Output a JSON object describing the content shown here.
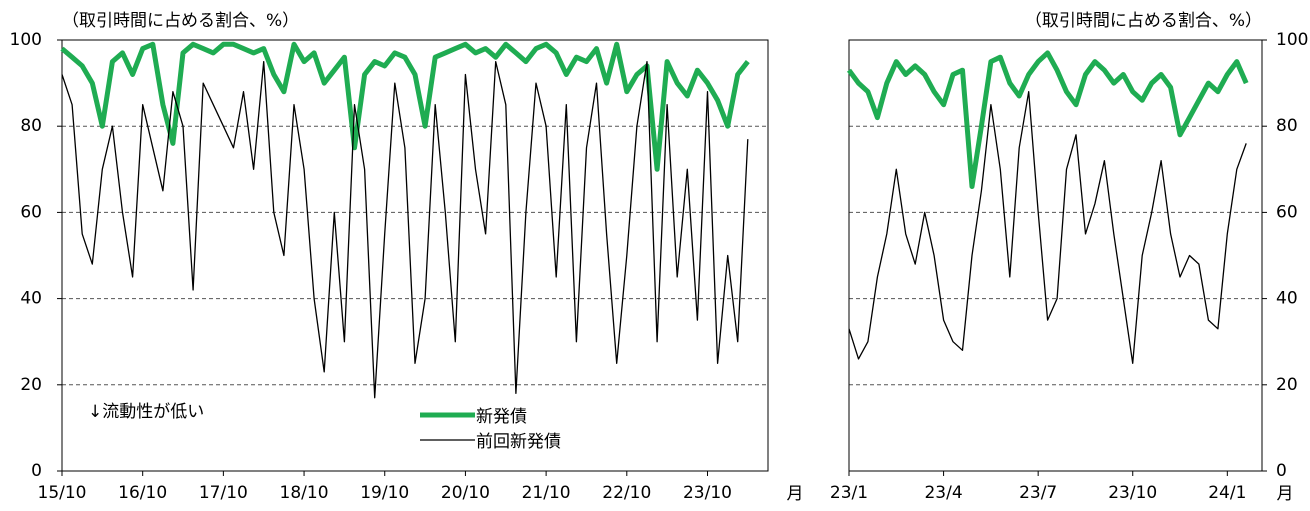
{
  "chart_data": [
    {
      "type": "line",
      "y_label": "（取引時間に占める割合、%）",
      "x_label": "月",
      "annotation": "↓流動性が低い",
      "x": [
        0,
        1.5,
        3,
        4.5,
        6,
        7.5,
        9,
        10.5,
        12,
        13.5,
        15,
        16.5,
        18,
        19.5,
        21,
        22.5,
        24,
        25.5,
        27,
        28.5,
        30,
        31.5,
        33,
        34.5,
        36,
        37.5,
        39,
        40.5,
        42,
        43.5,
        45,
        46.5,
        48,
        49.5,
        51,
        52.5,
        54,
        55.5,
        57,
        58.5,
        60,
        61.5,
        63,
        64.5,
        66,
        67.5,
        69,
        70.5,
        72,
        73.5,
        75,
        76.5,
        78,
        79.5,
        81,
        82.5,
        84,
        85.5,
        87,
        88.5,
        90,
        91.5,
        93,
        94.5,
        96,
        97.5,
        99,
        100.5,
        102
      ],
      "series": [
        {
          "name": "新発債",
          "color": "#1fac52",
          "width": 5,
          "values": [
            98,
            96,
            94,
            90,
            80,
            95,
            97,
            92,
            98,
            99,
            85,
            76,
            97,
            99,
            98,
            97,
            99,
            99,
            98,
            97,
            98,
            92,
            88,
            99,
            95,
            97,
            90,
            93,
            96,
            75,
            92,
            95,
            94,
            97,
            96,
            92,
            80,
            96,
            97,
            98,
            99,
            97,
            98,
            96,
            99,
            97,
            95,
            98,
            99,
            97,
            92,
            96,
            95,
            98,
            90,
            99,
            88,
            92,
            94,
            70,
            95,
            90,
            87,
            93,
            90,
            86,
            80,
            92,
            95
          ]
        },
        {
          "name": "前回新発債",
          "color": "#000000",
          "width": 1.3,
          "values": [
            92,
            85,
            55,
            48,
            70,
            80,
            60,
            45,
            85,
            75,
            65,
            88,
            80,
            42,
            90,
            85,
            80,
            75,
            88,
            70,
            95,
            60,
            50,
            85,
            70,
            40,
            23,
            60,
            30,
            85,
            70,
            17,
            55,
            90,
            75,
            25,
            40,
            85,
            60,
            30,
            92,
            70,
            55,
            95,
            85,
            18,
            60,
            90,
            80,
            45,
            85,
            30,
            75,
            90,
            55,
            25,
            50,
            80,
            95,
            30,
            85,
            45,
            70,
            35,
            88,
            25,
            50,
            30,
            77
          ]
        }
      ],
      "xlim": [
        0,
        105
      ],
      "xticks": [
        {
          "value": 0,
          "label": "15/10"
        },
        {
          "value": 12,
          "label": "16/10"
        },
        {
          "value": 24,
          "label": "17/10"
        },
        {
          "value": 36,
          "label": "18/10"
        },
        {
          "value": 48,
          "label": "19/10"
        },
        {
          "value": 60,
          "label": "20/10"
        },
        {
          "value": 72,
          "label": "21/10"
        },
        {
          "value": 84,
          "label": "22/10"
        },
        {
          "value": 96,
          "label": "23/10"
        }
      ],
      "ylim": [
        0,
        100
      ],
      "yticks": [
        0,
        20,
        40,
        60,
        80,
        100
      ],
      "grid": true,
      "legend": true
    },
    {
      "type": "line",
      "y_label": "（取引時間に占める割合、%）",
      "x_label": "月",
      "x": [
        0,
        0.3,
        0.6,
        0.9,
        1.2,
        1.5,
        1.8,
        2.1,
        2.4,
        2.7,
        3,
        3.3,
        3.6,
        3.9,
        4.2,
        4.5,
        4.8,
        5.1,
        5.4,
        5.7,
        6,
        6.3,
        6.6,
        6.9,
        7.2,
        7.5,
        7.8,
        8.1,
        8.4,
        8.7,
        9,
        9.3,
        9.6,
        9.9,
        10.2,
        10.5,
        10.8,
        11.1,
        11.4,
        11.7,
        12,
        12.3,
        12.6
      ],
      "series": [
        {
          "name": "新発債",
          "color": "#1fac52",
          "width": 5,
          "values": [
            93,
            90,
            88,
            82,
            90,
            95,
            92,
            94,
            92,
            88,
            85,
            92,
            93,
            66,
            80,
            95,
            96,
            90,
            87,
            92,
            95,
            97,
            93,
            88,
            85,
            92,
            95,
            93,
            90,
            92,
            88,
            86,
            90,
            92,
            89,
            78,
            82,
            86,
            90,
            88,
            92,
            95,
            90
          ]
        },
        {
          "name": "前回新発債",
          "color": "#000000",
          "width": 1.3,
          "values": [
            33,
            26,
            30,
            45,
            55,
            70,
            55,
            48,
            60,
            50,
            35,
            30,
            28,
            50,
            65,
            85,
            70,
            45,
            75,
            88,
            60,
            35,
            40,
            70,
            78,
            55,
            62,
            72,
            55,
            40,
            25,
            50,
            60,
            72,
            55,
            45,
            50,
            48,
            35,
            33,
            55,
            70,
            76
          ]
        }
      ],
      "xlim": [
        0,
        13.1
      ],
      "xticks": [
        {
          "value": 0,
          "label": "23/1"
        },
        {
          "value": 3,
          "label": "23/4"
        },
        {
          "value": 6,
          "label": "23/7"
        },
        {
          "value": 9,
          "label": "23/10"
        },
        {
          "value": 12,
          "label": "24/1"
        }
      ],
      "ylim": [
        0,
        100
      ],
      "yticks": [
        0,
        20,
        40,
        60,
        80,
        100
      ],
      "grid": true,
      "legend": false
    }
  ]
}
